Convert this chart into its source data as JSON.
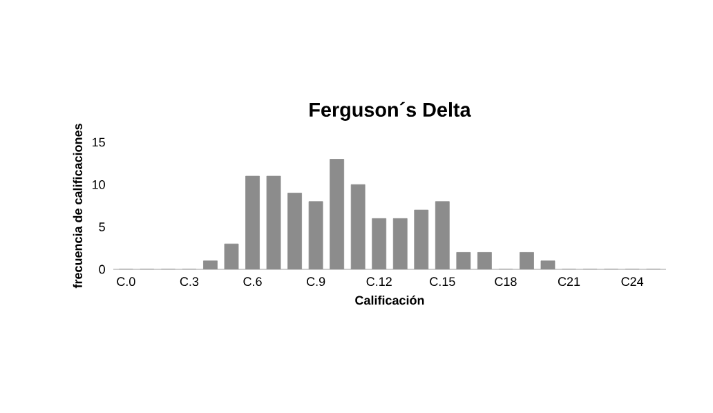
{
  "chart_data": {
    "type": "bar",
    "title": "Ferguson´s Delta",
    "xlabel": "Calificación",
    "ylabel": "frecuencia de calificaciones",
    "categories": [
      "C.0",
      null,
      null,
      "C.3",
      null,
      null,
      "C.6",
      null,
      null,
      "C.9",
      null,
      null,
      "C.12",
      null,
      null,
      "C.15",
      null,
      null,
      "C18",
      null,
      null,
      "C21",
      null,
      null,
      "C24",
      null
    ],
    "values": [
      0,
      0,
      0,
      0,
      1,
      3,
      11,
      11,
      9,
      8,
      13,
      10,
      6,
      6,
      7,
      8,
      2,
      2,
      0,
      2,
      1,
      0,
      0,
      0,
      0,
      0
    ],
    "color": "#8c8c8c",
    "ylim": [
      0,
      15
    ],
    "yticks": [
      0,
      5,
      10,
      15
    ]
  }
}
